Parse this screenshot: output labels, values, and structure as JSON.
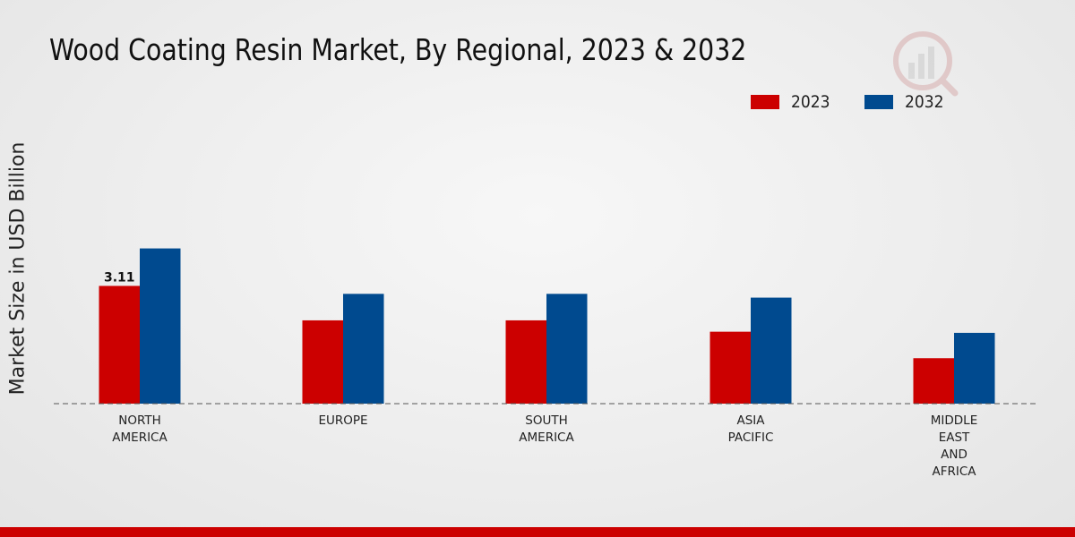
{
  "chart_data": {
    "type": "bar",
    "title": "Wood Coating Resin Market, By Regional, 2023 & 2032",
    "xlabel": "",
    "ylabel": "Market Size in USD Billion",
    "categories": [
      [
        "NORTH",
        "AMERICA"
      ],
      [
        "EUROPE"
      ],
      [
        "SOUTH",
        "AMERICA"
      ],
      [
        "ASIA",
        "PACIFIC"
      ],
      [
        "MIDDLE",
        "EAST",
        "AND",
        "AFRICA"
      ]
    ],
    "series": [
      {
        "name": "2023",
        "color": "#cc0000",
        "values": [
          3.11,
          2.2,
          2.2,
          1.9,
          1.2
        ]
      },
      {
        "name": "2032",
        "color": "#004a8f",
        "values": [
          4.1,
          2.9,
          2.9,
          2.8,
          1.87
        ]
      }
    ],
    "data_labels": [
      {
        "series": 0,
        "index": 0,
        "text": "3.11"
      }
    ],
    "ylim": [
      0,
      5
    ],
    "grid": false,
    "legend_position": "top-right"
  }
}
